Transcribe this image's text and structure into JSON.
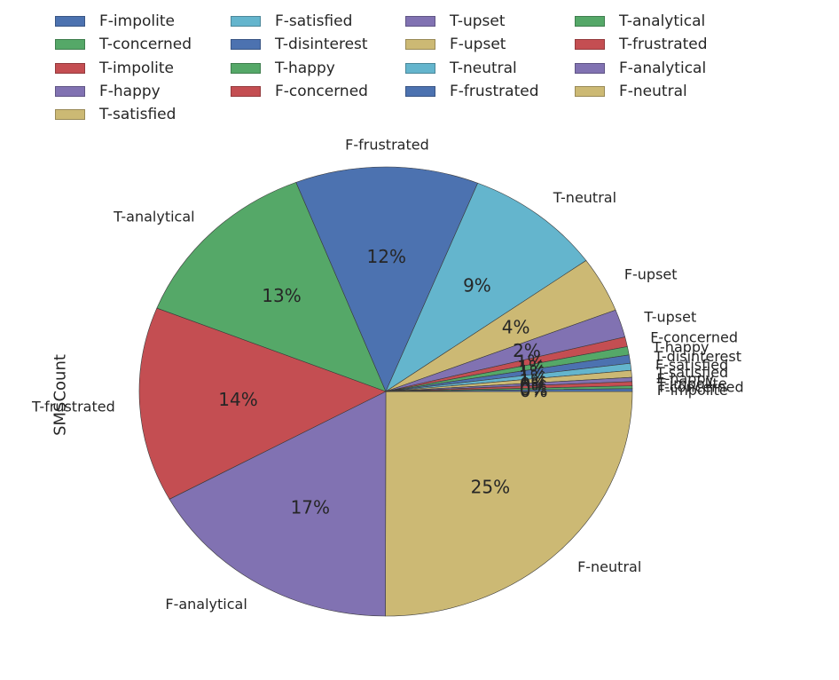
{
  "chart_data": {
    "type": "pie",
    "ylabel": "SMSCount",
    "legend_position": "top",
    "slices": [
      {
        "label": "F-neutral",
        "value": 25,
        "color": "#ccb974"
      },
      {
        "label": "F-analytical",
        "value": 17,
        "color": "#8172b2"
      },
      {
        "label": "T-frustrated",
        "value": 14,
        "color": "#c44e52"
      },
      {
        "label": "T-analytical",
        "value": 13,
        "color": "#55a868"
      },
      {
        "label": "F-frustrated",
        "value": 12,
        "color": "#4c72b0"
      },
      {
        "label": "T-neutral",
        "value": 9,
        "color": "#64b5cd"
      },
      {
        "label": "F-upset",
        "value": 4,
        "color": "#ccb974"
      },
      {
        "label": "T-upset",
        "value": 2,
        "color": "#8172b2"
      },
      {
        "label": "F-concerned",
        "value": 0.7,
        "color": "#c44e52"
      },
      {
        "label": "T-happy",
        "value": 0.6,
        "color": "#55a868"
      },
      {
        "label": "T-disinterest",
        "value": 0.6,
        "color": "#4c72b0"
      },
      {
        "label": "F-satisfied",
        "value": 0.5,
        "color": "#64b5cd"
      },
      {
        "label": "T-satisfied",
        "value": 0.5,
        "color": "#ccb974"
      },
      {
        "label": "F-happy",
        "value": 0.3,
        "color": "#8172b2"
      },
      {
        "label": "T-impolite",
        "value": 0.3,
        "color": "#c44e52"
      },
      {
        "label": "T-concerned",
        "value": 0.2,
        "color": "#55a868"
      },
      {
        "label": "F-impolite",
        "value": 0.2,
        "color": "#4c72b0"
      }
    ],
    "slice_pct_labels": [
      "25%",
      "17%",
      "14%",
      "13%",
      "12%",
      "9%",
      "4%",
      "2%",
      "1%",
      "1%",
      "1%",
      "1%",
      "1%",
      "0%",
      "0%",
      "0%",
      "0%"
    ],
    "legend": [
      {
        "label": "F-impolite",
        "color": "#4c72b0"
      },
      {
        "label": "F-satisfied",
        "color": "#64b5cd"
      },
      {
        "label": "T-upset",
        "color": "#8172b2"
      },
      {
        "label": "T-analytical",
        "color": "#55a868"
      },
      {
        "label": "T-concerned",
        "color": "#55a868"
      },
      {
        "label": "T-disinterest",
        "color": "#4c72b0"
      },
      {
        "label": "F-upset",
        "color": "#ccb974"
      },
      {
        "label": "T-frustrated",
        "color": "#c44e52"
      },
      {
        "label": "T-impolite",
        "color": "#c44e52"
      },
      {
        "label": "T-happy",
        "color": "#55a868"
      },
      {
        "label": "T-neutral",
        "color": "#64b5cd"
      },
      {
        "label": "F-analytical",
        "color": "#8172b2"
      },
      {
        "label": "F-happy",
        "color": "#8172b2"
      },
      {
        "label": "F-concerned",
        "color": "#c44e52"
      },
      {
        "label": "F-frustrated",
        "color": "#4c72b0"
      },
      {
        "label": "F-neutral",
        "color": "#ccb974"
      },
      {
        "label": "T-satisfied",
        "color": "#ccb974"
      }
    ]
  }
}
